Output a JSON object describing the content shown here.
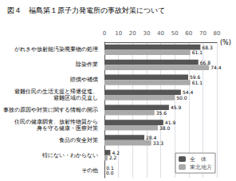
{
  "chart_data": {
    "type": "bar",
    "orientation": "horizontal",
    "title": "図４　福島第１原子力発電所の事故対策について",
    "xlabel": "(%)",
    "categories": [
      "がれきや放射能汚染廃棄物の処理",
      "除染作業",
      "賠償や補償",
      "避難住民の生活支援と帰還促進、\n避難区域の見直し",
      "事故の原因や対策に関する情報の開示",
      "住民の健康調査、放射性物質から\n身を守る健康・医療対策",
      "食品の安全対策",
      "特にない・わからない",
      "その他"
    ],
    "series": [
      {
        "name": "全　体",
        "color": "#555555",
        "values": [
          68.3,
          66.8,
          59.6,
          54.4,
          45.9,
          41.9,
          28.4,
          4.2,
          0.1
        ]
      },
      {
        "name": "東北地方",
        "color": "#aaaaaa",
        "values": [
          61.1,
          74.4,
          61.1,
          50.0,
          35.6,
          38.0,
          33.3,
          2.2,
          0.0
        ],
        "value_labels": [
          "61.1",
          "74.4",
          "61.1",
          "50.0",
          "35.6",
          "38.0",
          "33.3",
          "2.2",
          "0.0"
        ]
      }
    ],
    "xlim": [
      0,
      80
    ],
    "xticks": [
      0,
      10,
      20,
      30,
      40,
      50,
      60,
      70,
      80
    ],
    "grid": true,
    "legend": "lower right",
    "data_labels": true
  }
}
